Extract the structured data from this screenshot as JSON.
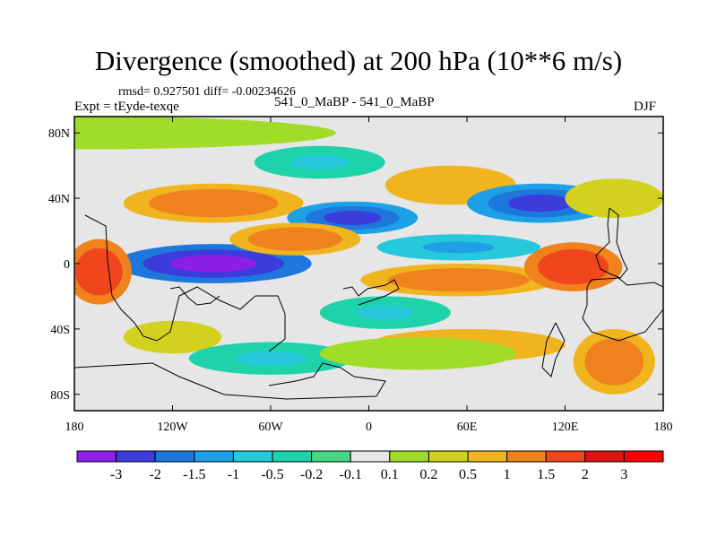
{
  "chart_data": {
    "type": "heatmap",
    "title": "Divergence (smoothed) at 200 hPa (10**6 m/s)",
    "stats": "rmsd= 0.927501 diff= -0.00234626",
    "experiment": "Expt = tEyde-texqe",
    "case": "541_0_MaBP - 541_0_MaBP",
    "season": "DJF",
    "x_ticks": [
      "180",
      "120W",
      "60W",
      "0",
      "60E",
      "120E",
      "180"
    ],
    "x_values": [
      -180,
      -120,
      -60,
      0,
      60,
      120,
      180
    ],
    "y_ticks": [
      "80N",
      "40N",
      "0",
      "40S",
      "80S"
    ],
    "y_values": [
      80,
      40,
      0,
      -40,
      -80
    ],
    "xlim": [
      -180,
      180
    ],
    "ylim": [
      -90,
      90
    ],
    "colorbar": {
      "labels": [
        "-3",
        "-2",
        "-1.5",
        "-1",
        "-0.5",
        "-0.2",
        "-0.1",
        "0.1",
        "0.2",
        "0.5",
        "1",
        "1.5",
        "2",
        "3"
      ],
      "colors": [
        "#8c1ee6",
        "#3c3cdc",
        "#1e78dc",
        "#1ea0e6",
        "#28c8dc",
        "#1ed2aa",
        "#46d782",
        "#e6e6e6",
        "#a0dc28",
        "#d2d21e",
        "#f0b41e",
        "#f0821e",
        "#f0461e",
        "#dc1414",
        "#ff0000"
      ]
    },
    "fields": [
      {
        "name": "arctic-anomaly",
        "lon": -170,
        "lat": 80,
        "rx": 150,
        "ry": 10,
        "value": 0.2
      },
      {
        "name": "north-pacific-high",
        "lon": -95,
        "lat": 37,
        "rx": 55,
        "ry": 12,
        "value": 1.5
      },
      {
        "name": "north-pacific-ring",
        "lon": -30,
        "lat": 62,
        "rx": 40,
        "ry": 10,
        "value": -0.5
      },
      {
        "name": "north-atlantic-low",
        "lon": -10,
        "lat": 28,
        "rx": 40,
        "ry": 10,
        "value": -2
      },
      {
        "name": "eurasia-high",
        "lon": 50,
        "lat": 48,
        "rx": 40,
        "ry": 12,
        "value": 1
      },
      {
        "name": "east-asia-low",
        "lon": 105,
        "lat": 37,
        "rx": 45,
        "ry": 12,
        "value": -2
      },
      {
        "name": "north-pacific-east",
        "lon": 150,
        "lat": 40,
        "rx": 30,
        "ry": 12,
        "value": 0.5
      },
      {
        "name": "eastern-pacific-low",
        "lon": -95,
        "lat": 0,
        "rx": 60,
        "ry": 12,
        "value": -3
      },
      {
        "name": "pacific-high-west",
        "lon": -165,
        "lat": -5,
        "rx": 20,
        "ry": 20,
        "value": 2
      },
      {
        "name": "atlantic-equator-high",
        "lon": -45,
        "lat": 15,
        "rx": 40,
        "ry": 10,
        "value": 1.5
      },
      {
        "name": "indian-ocean-high",
        "lon": 55,
        "lat": -10,
        "rx": 60,
        "ry": 10,
        "value": 1.5
      },
      {
        "name": "maritime-continent-high",
        "lon": 125,
        "lat": -2,
        "rx": 30,
        "ry": 15,
        "value": 2
      },
      {
        "name": "indian-ocean-low",
        "lon": 55,
        "lat": 10,
        "rx": 50,
        "ry": 8,
        "value": -1
      },
      {
        "name": "southern-high",
        "lon": 150,
        "lat": -60,
        "rx": 25,
        "ry": 20,
        "value": 1.5
      },
      {
        "name": "south-atlantic-band",
        "lon": 60,
        "lat": -50,
        "rx": 60,
        "ry": 10,
        "value": 1
      },
      {
        "name": "south-pacific-low",
        "lon": -120,
        "lat": -45,
        "rx": 30,
        "ry": 10,
        "value": 0.5
      },
      {
        "name": "south-ocean-blue",
        "lon": 10,
        "lat": -30,
        "rx": 40,
        "ry": 10,
        "value": -0.5
      },
      {
        "name": "antarctic-blue",
        "lon": -60,
        "lat": -58,
        "rx": 50,
        "ry": 10,
        "value": -0.5
      },
      {
        "name": "southern-green",
        "lon": 30,
        "lat": -55,
        "rx": 60,
        "ry": 10,
        "value": 0.2
      }
    ]
  }
}
